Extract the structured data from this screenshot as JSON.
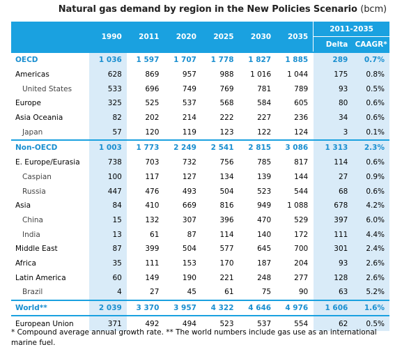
{
  "title": {
    "main": "Natural gas demand by region in the New Policies Scenario",
    "unit": "(bcm)"
  },
  "header": {
    "years": [
      "1990",
      "2011",
      "2020",
      "2025",
      "2030",
      "2035"
    ],
    "period": "2011-2035",
    "delta": "Delta",
    "cagr": "CAAGR*"
  },
  "rows": [
    {
      "label": "OECD",
      "values": [
        "1 036",
        "1 597",
        "1 707",
        "1 778",
        "1 827",
        "1 885",
        "289",
        "0.7%"
      ]
    },
    {
      "label": "Americas",
      "values": [
        "628",
        "869",
        "957",
        "988",
        "1 016",
        "1 044",
        "175",
        "0.8%"
      ]
    },
    {
      "label": "United States",
      "values": [
        "533",
        "696",
        "749",
        "769",
        "781",
        "789",
        "93",
        "0.5%"
      ]
    },
    {
      "label": "Europe",
      "values": [
        "325",
        "525",
        "537",
        "568",
        "584",
        "605",
        "80",
        "0.6%"
      ]
    },
    {
      "label": "Asia Oceania",
      "values": [
        "82",
        "202",
        "214",
        "222",
        "227",
        "236",
        "34",
        "0.6%"
      ]
    },
    {
      "label": "Japan",
      "values": [
        "57",
        "120",
        "119",
        "123",
        "122",
        "124",
        "3",
        "0.1%"
      ]
    },
    {
      "label": "Non-OECD",
      "values": [
        "1 003",
        "1 773",
        "2 249",
        "2 541",
        "2 815",
        "3 086",
        "1 313",
        "2.3%"
      ]
    },
    {
      "label": "E. Europe/Eurasia",
      "values": [
        "738",
        "703",
        "732",
        "756",
        "785",
        "817",
        "114",
        "0.6%"
      ]
    },
    {
      "label": "Caspian",
      "values": [
        "100",
        "117",
        "127",
        "134",
        "139",
        "144",
        "27",
        "0.9%"
      ]
    },
    {
      "label": "Russia",
      "values": [
        "447",
        "476",
        "493",
        "504",
        "523",
        "544",
        "68",
        "0.6%"
      ]
    },
    {
      "label": "Asia",
      "values": [
        "84",
        "410",
        "669",
        "816",
        "949",
        "1 088",
        "678",
        "4.2%"
      ]
    },
    {
      "label": "China",
      "values": [
        "15",
        "132",
        "307",
        "396",
        "470",
        "529",
        "397",
        "6.0%"
      ]
    },
    {
      "label": "India",
      "values": [
        "13",
        "61",
        "87",
        "114",
        "140",
        "172",
        "111",
        "4.4%"
      ]
    },
    {
      "label": "Middle East",
      "values": [
        "87",
        "399",
        "504",
        "577",
        "645",
        "700",
        "301",
        "2.4%"
      ]
    },
    {
      "label": "Africa",
      "values": [
        "35",
        "111",
        "153",
        "170",
        "187",
        "204",
        "93",
        "2.6%"
      ]
    },
    {
      "label": "Latin America",
      "values": [
        "60",
        "149",
        "190",
        "221",
        "248",
        "277",
        "128",
        "2.6%"
      ]
    },
    {
      "label": "Brazil",
      "values": [
        "4",
        "27",
        "45",
        "61",
        "75",
        "90",
        "63",
        "5.2%"
      ]
    },
    {
      "label": "World**",
      "values": [
        "2 039",
        "3 370",
        "3 957",
        "4 322",
        "4 646",
        "4 976",
        "1 606",
        "1.6%"
      ]
    },
    {
      "label": "European Union",
      "values": [
        "371",
        "492",
        "494",
        "523",
        "537",
        "554",
        "62",
        "0.5%"
      ]
    }
  ],
  "footnote": "* Compound average annual growth rate. ** The world numbers include gas use as an international marine fuel.",
  "colors": {
    "header_bg": "#1aa1e0",
    "shade": "#d9ebf8",
    "region_text": "#1a8fd0"
  }
}
